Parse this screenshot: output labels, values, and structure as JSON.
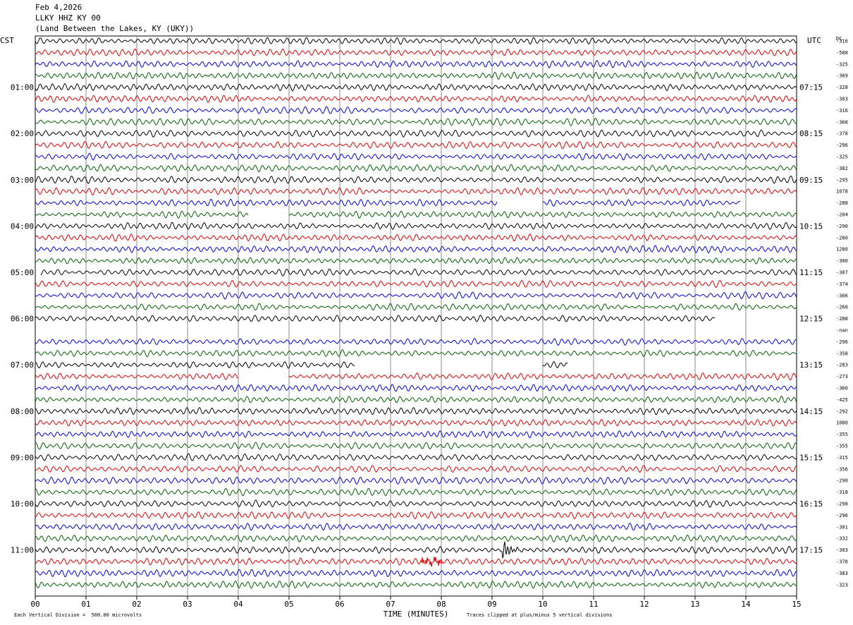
{
  "header": {
    "date": "Feb 4,2026",
    "station": "LLKY HHZ KY 00",
    "location": "(Land Between the Lakes, KY (UKY))"
  },
  "axes": {
    "left_tz": "CST",
    "right_tz": "UTC",
    "dc_label": "DC",
    "xlabel": "TIME (MINUTES)"
  },
  "footer": {
    "scale": "Each Vertical Division =  500.00 microvolts",
    "clip": "Traces clipped at plus/minus 5 vertical divisions"
  },
  "chart_data": {
    "type": "line",
    "title": "LLKY HHZ KY 00",
    "xlabel": "TIME (MINUTES)",
    "xlim": [
      0,
      15
    ],
    "x_ticks": [
      "00",
      "01",
      "02",
      "03",
      "04",
      "05",
      "06",
      "07",
      "08",
      "09",
      "10",
      "11",
      "12",
      "13",
      "14",
      "15"
    ],
    "left_hour_labels": [
      "01:00",
      "02:00",
      "03:00",
      "04:00",
      "05:00",
      "06:00",
      "07:00",
      "08:00",
      "09:00",
      "10:00",
      "11:00"
    ],
    "right_hour_labels": [
      "07:15",
      "08:15",
      "09:15",
      "10:15",
      "11:15",
      "12:15",
      "13:15",
      "14:15",
      "15:15",
      "16:15",
      "17:15"
    ],
    "trace_colors": [
      "#000000",
      "#e00000",
      "#0000e0",
      "#006000"
    ],
    "dc_offsets": [
      "-316",
      "-588",
      "-325",
      "-369",
      "-328",
      "-303",
      "-316",
      "-368",
      "-378",
      "-296",
      "-325",
      "-382",
      "-295",
      "1078",
      "-288",
      "-284",
      "-290",
      "-280",
      "1280",
      "-300",
      "-307",
      "-374",
      "-306",
      "-260",
      "-288",
      "-nan",
      "-296",
      "-358",
      "-283",
      "-273",
      "-360",
      "-425",
      "-292",
      "1080",
      "-355",
      "-355",
      "-315",
      "-356",
      "-290",
      "-318",
      "-298",
      "-296",
      "-301",
      "-332",
      "-303",
      "-378",
      "-383",
      "-323"
    ],
    "events": [
      {
        "trace": 44,
        "minute": 9.2,
        "label": "large signal"
      },
      {
        "trace": 45,
        "minute": 7.8,
        "label": "burst"
      }
    ],
    "gaps": [
      {
        "trace": 14,
        "from_minute": 9.1,
        "to_minute": 10.0
      },
      {
        "trace": 14,
        "from_minute": 13.9,
        "to_minute": 15.0
      },
      {
        "trace": 15,
        "from_minute": 4.2,
        "to_minute": 5.0
      },
      {
        "trace": 20,
        "from_minute": 0.0,
        "to_minute": 0.1
      },
      {
        "trace": 24,
        "from_minute": 13.4,
        "to_minute": 15.0
      },
      {
        "trace": 25,
        "from_minute": 0.0,
        "to_minute": 15.0
      },
      {
        "trace": 28,
        "from_minute": 6.3,
        "to_minute": 10.0
      },
      {
        "trace": 28,
        "from_minute": 10.5,
        "to_minute": 15.0
      },
      {
        "trace": 29,
        "from_minute": 4.0,
        "to_minute": 5.0
      }
    ]
  }
}
